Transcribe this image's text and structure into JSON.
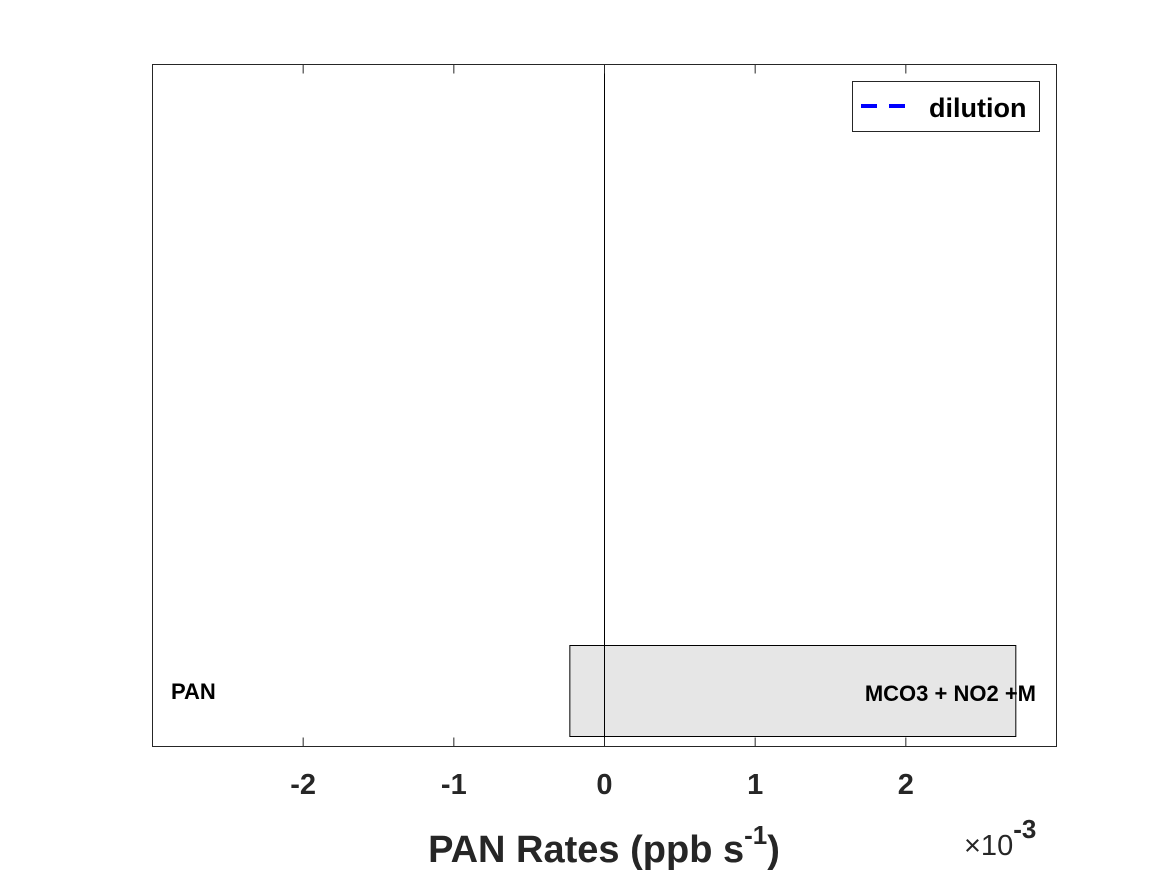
{
  "chart_data": {
    "type": "bar",
    "orientation": "horizontal",
    "xlabel_main": "PAN Rates (ppb s",
    "xlabel_sup": "-1",
    "xlabel_close": ")",
    "exponent_multiplier": "×10",
    "exponent_power": "-3",
    "xlim": [
      -3.0,
      3.0
    ],
    "xticks": [
      -2,
      -1,
      0,
      1,
      2
    ],
    "xtick_labels": [
      "-2",
      "-1",
      "0",
      "1",
      "2"
    ],
    "bars": [
      {
        "left_label": "PAN",
        "right_label": "MCO3 + NO2 +M",
        "start": -0.23,
        "end": 2.73,
        "color": "#e6e6e6"
      }
    ],
    "legend": {
      "entries": [
        {
          "label": "dilution",
          "color": "#0000ff",
          "style": "dashed"
        }
      ],
      "location": "top-right"
    },
    "grid": false
  }
}
